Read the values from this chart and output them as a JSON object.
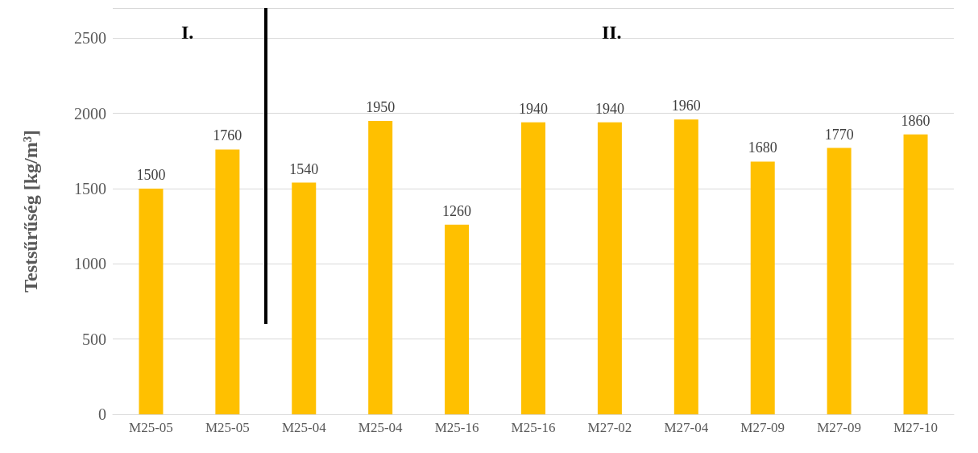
{
  "chart_data": {
    "type": "bar",
    "ylabel": "Testsűrűség [kg/m³]",
    "categories": [
      "M25-05",
      "M25-05",
      "M25-04",
      "M25-04",
      "M25-16",
      "M25-16",
      "M27-02",
      "M27-04",
      "M27-09",
      "M27-09",
      "M27-10"
    ],
    "values": [
      1500,
      1760,
      1540,
      1950,
      1260,
      1940,
      1940,
      1960,
      1680,
      1770,
      1860
    ],
    "color": "#ffc000",
    "data_labels": true,
    "ylim": [
      0,
      2700
    ],
    "yticks": [
      0,
      500,
      1000,
      1500,
      2000,
      2500
    ],
    "grid": "y",
    "annotations": [
      "I.",
      "II."
    ]
  }
}
